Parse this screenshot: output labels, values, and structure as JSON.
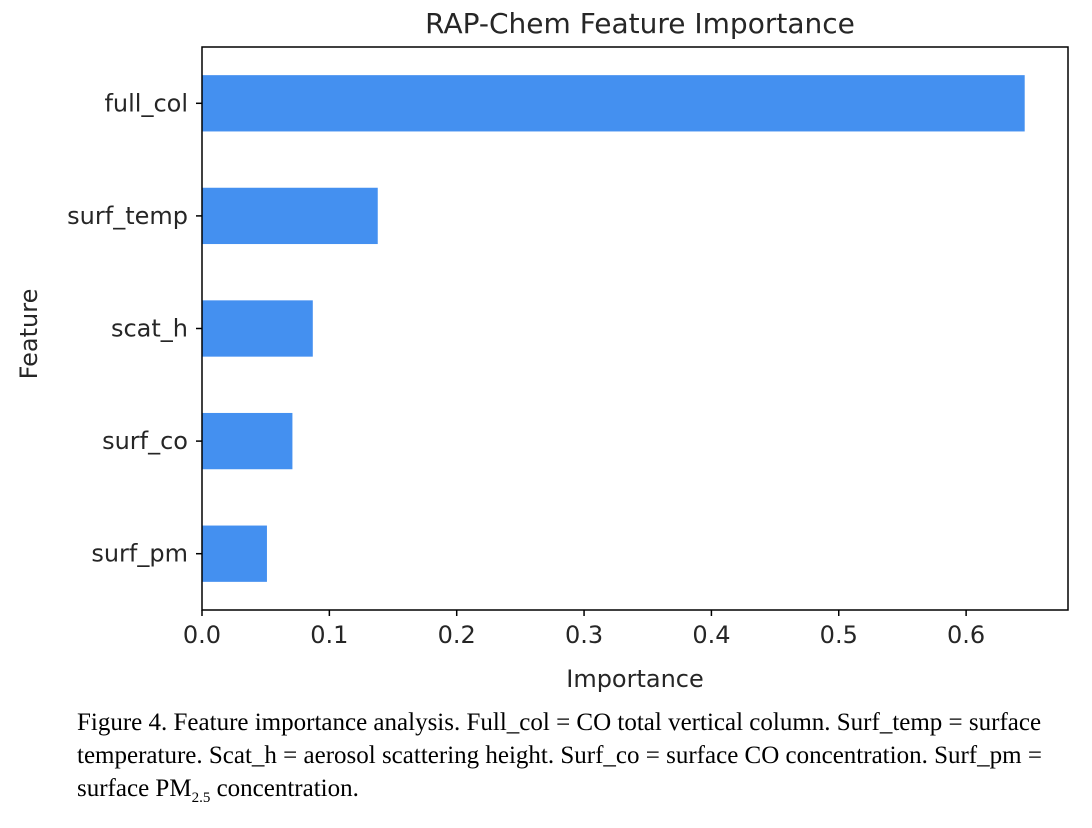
{
  "chart_data": {
    "type": "bar",
    "orientation": "horizontal",
    "title": "RAP-Chem Feature Importance",
    "xlabel": "Importance",
    "ylabel": "Feature",
    "categories": [
      "full_col",
      "surf_temp",
      "scat_h",
      "surf_co",
      "surf_pm"
    ],
    "values": [
      0.646,
      0.138,
      0.087,
      0.071,
      0.051
    ],
    "xlim": [
      0,
      0.68
    ],
    "xticks": [
      "0.0",
      "0.1",
      "0.2",
      "0.3",
      "0.4",
      "0.5",
      "0.6"
    ],
    "grid": false,
    "bar_color": "#4490f0"
  },
  "caption": {
    "text_before": "Figure 4. Feature importance analysis. Full_col = CO total vertical column. Surf_temp = surface temperature. Scat_h = aerosol scattering height. Surf_co = surface CO concentration. Surf_pm = surface PM",
    "subscript": "2.5",
    "text_after": " concentration."
  }
}
